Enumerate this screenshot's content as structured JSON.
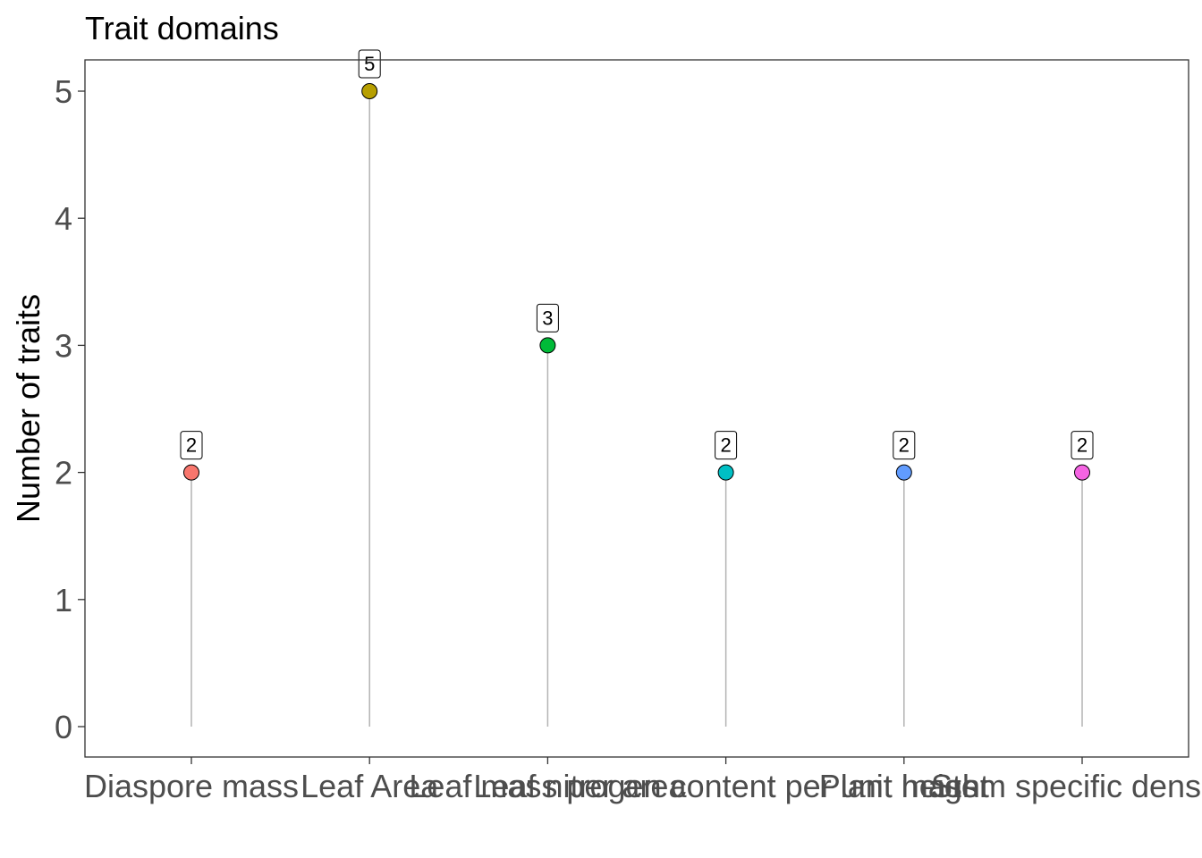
{
  "chart_data": {
    "type": "lollipop",
    "title": "Trait domains",
    "xlabel": "",
    "ylabel": "Number of traits",
    "categories": [
      "Diaspore mass",
      "Leaf Area",
      "Leaf mass per area",
      "Leaf nitrogen content per unit mass",
      "Plant height",
      "Stem specific density"
    ],
    "values": [
      2,
      5,
      3,
      2,
      2,
      2
    ],
    "data_labels": [
      "2",
      "5",
      "3",
      "2",
      "2",
      "2"
    ],
    "colors": [
      "#F8766D",
      "#B79F00",
      "#00BA38",
      "#00BFC4",
      "#619CFF",
      "#F564E3"
    ],
    "ylim": [
      0,
      5
    ],
    "yticks": [
      0,
      1,
      2,
      3,
      4,
      5
    ],
    "ytick_labels": [
      "0",
      "1",
      "2",
      "3",
      "4",
      "5"
    ],
    "grid": false,
    "legend": "none"
  }
}
